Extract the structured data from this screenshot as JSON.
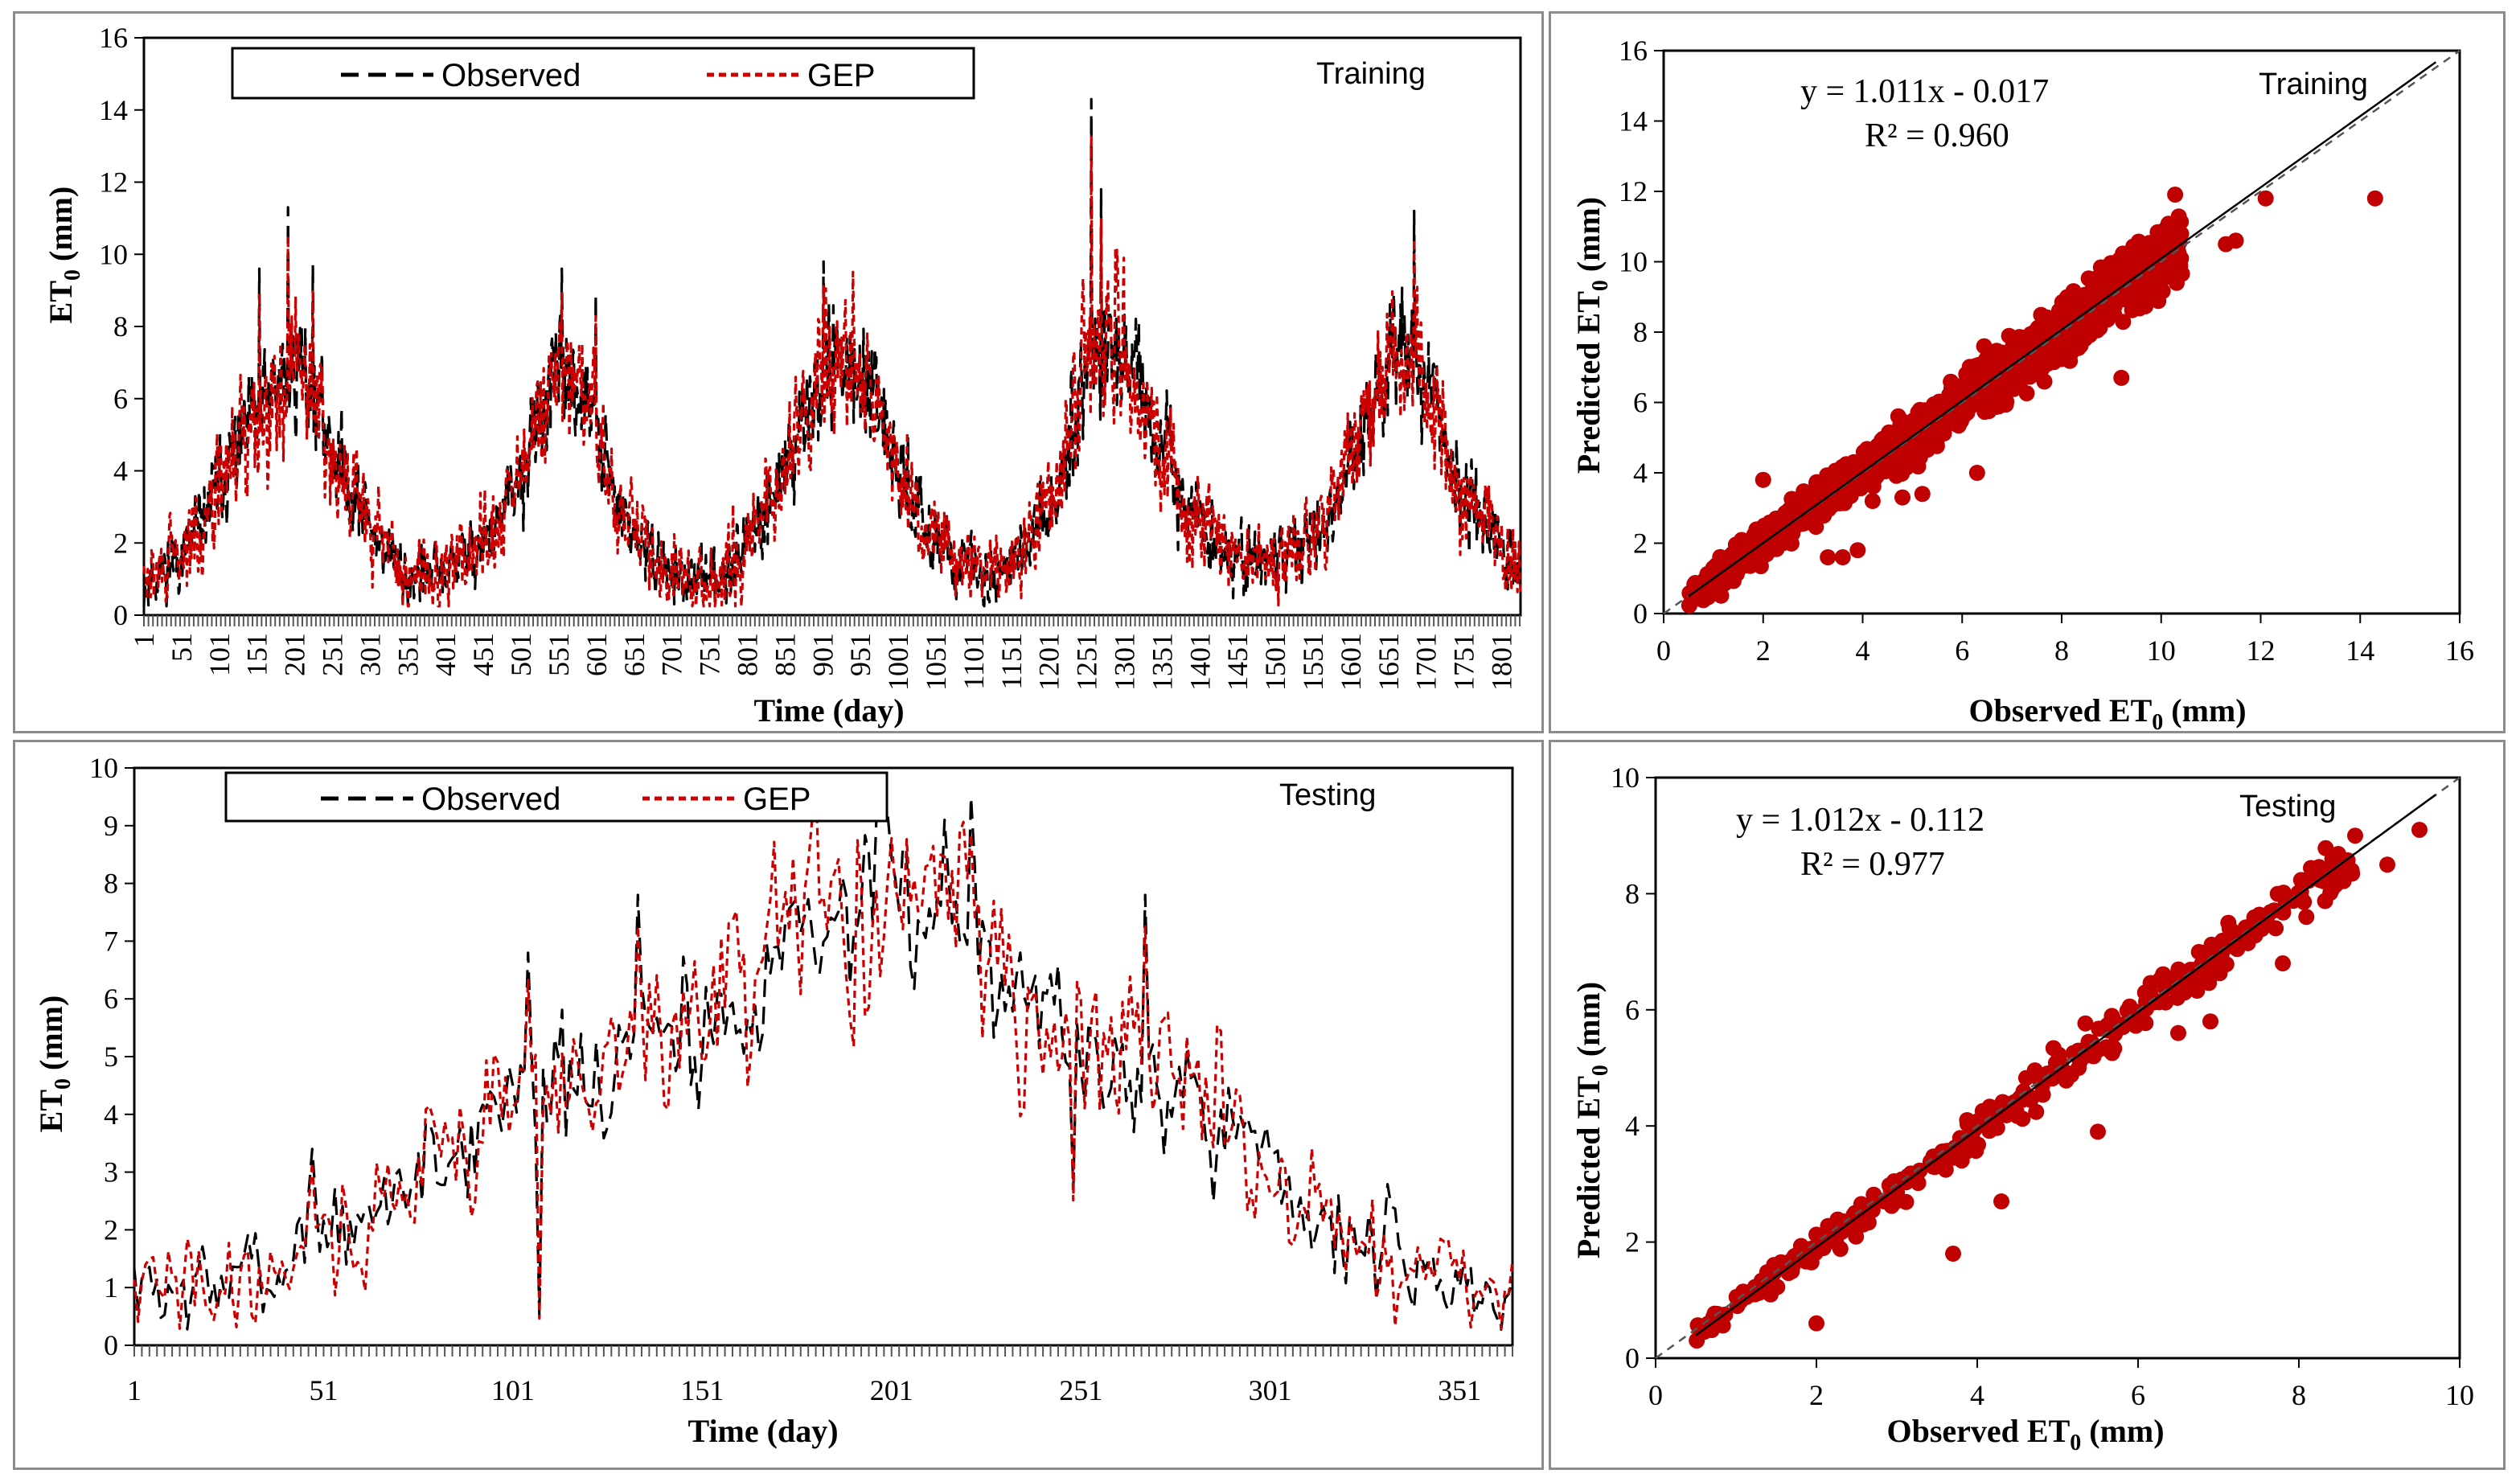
{
  "chart_data": [
    {
      "id": "train_ts",
      "type": "line",
      "title": "Training",
      "xlabel": "Time (day)",
      "ylabel": "ET0 (mm)",
      "xlim": [
        1,
        1826
      ],
      "ylim": [
        0,
        16
      ],
      "yticks": [
        0,
        2,
        4,
        6,
        8,
        10,
        12,
        14,
        16
      ],
      "xticks": [
        1,
        51,
        101,
        151,
        201,
        251,
        301,
        351,
        401,
        451,
        501,
        551,
        601,
        651,
        701,
        751,
        801,
        851,
        901,
        951,
        1001,
        1051,
        1101,
        1151,
        1201,
        1251,
        1301,
        1351,
        1401,
        1451,
        1501,
        1551,
        1601,
        1651,
        1701,
        1751,
        1801
      ],
      "anchors": [
        [
          1,
          0.9
        ],
        [
          60,
          1.8
        ],
        [
          110,
          4.0
        ],
        [
          160,
          5.8
        ],
        [
          210,
          7.0
        ],
        [
          260,
          4.2
        ],
        [
          300,
          2.5
        ],
        [
          350,
          1.0
        ],
        [
          400,
          1.2
        ],
        [
          460,
          2.2
        ],
        [
          500,
          3.6
        ],
        [
          530,
          5.8
        ],
        [
          560,
          6.8
        ],
        [
          600,
          5.2
        ],
        [
          630,
          2.8
        ],
        [
          680,
          1.5
        ],
        [
          720,
          0.9
        ],
        [
          760,
          1.1
        ],
        [
          800,
          2.0
        ],
        [
          850,
          4.0
        ],
        [
          900,
          6.8
        ],
        [
          940,
          7.1
        ],
        [
          980,
          5.0
        ],
        [
          1030,
          2.8
        ],
        [
          1080,
          1.5
        ],
        [
          1120,
          1.0
        ],
        [
          1170,
          1.8
        ],
        [
          1210,
          3.2
        ],
        [
          1250,
          7.2
        ],
        [
          1290,
          7.8
        ],
        [
          1330,
          5.5
        ],
        [
          1370,
          3.5
        ],
        [
          1420,
          2.0
        ],
        [
          1470,
          1.4
        ],
        [
          1520,
          1.7
        ],
        [
          1570,
          2.6
        ],
        [
          1620,
          5.3
        ],
        [
          1660,
          7.5
        ],
        [
          1700,
          6.5
        ],
        [
          1750,
          3.5
        ],
        [
          1800,
          1.8
        ],
        [
          1826,
          1.2
        ]
      ],
      "peaks": [
        [
          192,
          11.3
        ],
        [
          225,
          9.7
        ],
        [
          154,
          9.6
        ],
        [
          555,
          9.6
        ],
        [
          600,
          8.9
        ],
        [
          1257,
          14.3
        ],
        [
          1270,
          11.8
        ],
        [
          1685,
          11.2
        ],
        [
          902,
          9.8
        ]
      ],
      "series": [
        {
          "name": "Observed",
          "color": "#000000",
          "dash": "22,12",
          "seed": 11,
          "noise": 0.85
        },
        {
          "name": "GEP",
          "color": "#cc0000",
          "dash": "9,6",
          "seed": 29,
          "noise": 1.05
        }
      ],
      "legend": [
        "Observed",
        "GEP"
      ]
    },
    {
      "id": "test_ts",
      "type": "line",
      "title": "Testing",
      "xlabel": "Time (day)",
      "ylabel": "ET0 (mm)",
      "xlim": [
        1,
        365
      ],
      "ylim": [
        0,
        10
      ],
      "yticks": [
        0,
        1,
        2,
        3,
        4,
        5,
        6,
        7,
        8,
        9,
        10
      ],
      "xticks": [
        1,
        51,
        101,
        151,
        201,
        251,
        301,
        351
      ],
      "anchors": [
        [
          1,
          0.9
        ],
        [
          20,
          1.0
        ],
        [
          40,
          1.3
        ],
        [
          48,
          2.4
        ],
        [
          60,
          1.7
        ],
        [
          70,
          2.8
        ],
        [
          90,
          3.6
        ],
        [
          105,
          5.0
        ],
        [
          120,
          4.0
        ],
        [
          135,
          5.5
        ],
        [
          150,
          5.4
        ],
        [
          165,
          6.5
        ],
        [
          180,
          7.5
        ],
        [
          200,
          7.6
        ],
        [
          215,
          7.8
        ],
        [
          225,
          7.5
        ],
        [
          240,
          6.0
        ],
        [
          255,
          4.8
        ],
        [
          270,
          5.0
        ],
        [
          285,
          4.2
        ],
        [
          300,
          3.0
        ],
        [
          315,
          2.2
        ],
        [
          330,
          1.6
        ],
        [
          345,
          1.2
        ],
        [
          360,
          0.9
        ],
        [
          365,
          0.9
        ]
      ],
      "peaks": [
        [
          222,
          9.5
        ],
        [
          215,
          9.1
        ],
        [
          268,
          7.8
        ],
        [
          134,
          7.8
        ],
        [
          105,
          6.8
        ],
        [
          48,
          3.4
        ],
        [
          108,
          0.5
        ],
        [
          249,
          2.7
        ]
      ],
      "series": [
        {
          "name": "Observed",
          "color": "#000000",
          "dash": "22,12",
          "seed": 7,
          "noise": 0.8
        },
        {
          "name": "GEP",
          "color": "#cc0000",
          "dash": "9,6",
          "seed": 41,
          "noise": 0.95
        }
      ],
      "legend": [
        "Observed",
        "GEP"
      ]
    },
    {
      "id": "train_sc",
      "type": "scatter",
      "title": "Training",
      "xlabel": "Observed ET0 (mm)",
      "ylabel": "Predicted ET0 (mm)",
      "xlim": [
        0,
        16
      ],
      "ylim": [
        0,
        16
      ],
      "xticks": [
        0,
        2,
        4,
        6,
        8,
        10,
        12,
        14,
        16
      ],
      "yticks": [
        0,
        2,
        4,
        6,
        8,
        10,
        12,
        14,
        16
      ],
      "equation": "y = 1.011x - 0.017",
      "r2": "R² = 0.960",
      "fit": {
        "slope": 1.011,
        "intercept": -0.017
      },
      "n_points": 1200,
      "spread": 0.45,
      "seed": 5,
      "outliers": [
        [
          14.3,
          11.8
        ],
        [
          12.1,
          11.8
        ],
        [
          11.5,
          10.6
        ],
        [
          11.3,
          10.5
        ],
        [
          10.0,
          10.2
        ],
        [
          9.2,
          6.7
        ],
        [
          6.3,
          4.0
        ],
        [
          5.2,
          3.4
        ],
        [
          4.8,
          3.3
        ],
        [
          4.2,
          3.2
        ],
        [
          3.6,
          1.6
        ],
        [
          3.9,
          1.8
        ],
        [
          3.3,
          1.6
        ],
        [
          2.0,
          3.8
        ]
      ],
      "color": "#c00000"
    },
    {
      "id": "test_sc",
      "type": "scatter",
      "title": "Testing",
      "xlabel": "Observed ET0 (mm)",
      "ylabel": "Predicted ET0 (mm)",
      "xlim": [
        0,
        10
      ],
      "ylim": [
        0,
        10
      ],
      "xticks": [
        0,
        2,
        4,
        6,
        8,
        10
      ],
      "yticks": [
        0,
        2,
        4,
        6,
        8,
        10
      ],
      "equation": "y = 1.012x - 0.112",
      "r2": "R² = 0.977",
      "fit": {
        "slope": 1.012,
        "intercept": -0.112
      },
      "n_points": 365,
      "spread": 0.22,
      "seed": 3,
      "outliers": [
        [
          9.5,
          9.1
        ],
        [
          9.1,
          8.5
        ],
        [
          8.7,
          9.0
        ],
        [
          7.8,
          6.8
        ],
        [
          6.9,
          5.8
        ],
        [
          5.5,
          3.9
        ],
        [
          4.3,
          2.7
        ],
        [
          3.7,
          1.8
        ],
        [
          2.0,
          0.6
        ],
        [
          6.5,
          5.6
        ]
      ],
      "color": "#c00000"
    }
  ],
  "labels": {
    "observed": "Observed",
    "gep": "GEP",
    "training": "Training",
    "testing": "Testing",
    "time_day": "Time (day)",
    "et0_mm_pre": "ET",
    "et0_mm_sub": "0",
    "et0_mm_post": " (mm)",
    "pred_pre": "Predicted ET",
    "pred_sub": "0",
    "pred_post": " (mm)",
    "obs_pre": "Observed ET",
    "obs_sub": "0",
    "obs_post": " (mm)",
    "eq_train": "y = 1.011x - 0.017",
    "r2_train": "R² = 0.960",
    "eq_test": "y = 1.012x - 0.112",
    "r2_test": "R² = 0.977"
  }
}
